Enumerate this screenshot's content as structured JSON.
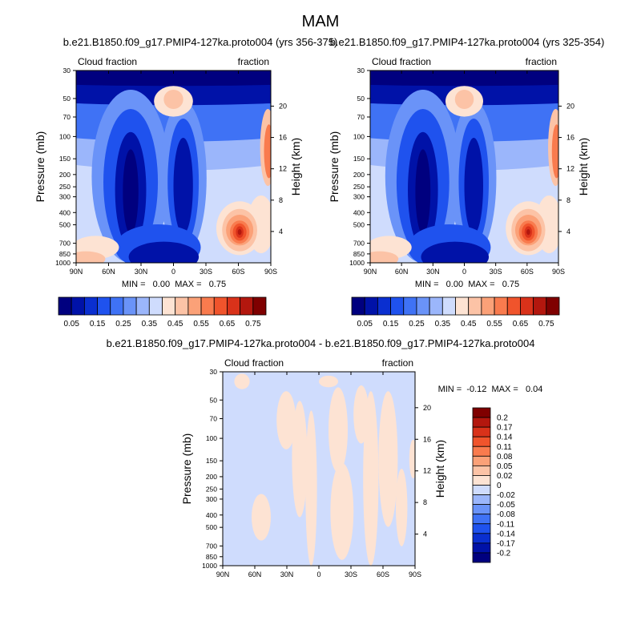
{
  "figure": {
    "title": "MAM"
  },
  "chart_data": [
    {
      "type": "heatmap",
      "title": "b.e21.B1850.f09_g17.PMIP4-127ka.proto004 (yrs 356-375)",
      "left_label": "Cloud fraction",
      "right_label": "fraction",
      "xlabel": "",
      "ylabel": "Pressure (mb)",
      "ylabel_right": "Height (km)",
      "x_ticks": [
        "90N",
        "60N",
        "30N",
        "0",
        "30S",
        "60S",
        "90S"
      ],
      "x_values": [
        90,
        60,
        30,
        0,
        -30,
        -60,
        -90
      ],
      "y_ticks": [
        "30",
        "50",
        "70",
        "100",
        "150",
        "200",
        "250",
        "300",
        "400",
        "500",
        "700",
        "850",
        "1000"
      ],
      "y_values": [
        30,
        50,
        70,
        100,
        150,
        200,
        250,
        300,
        400,
        500,
        700,
        850,
        1000
      ],
      "height_ticks": [
        "20",
        "16",
        "12",
        "8",
        "4"
      ],
      "height_values": [
        20,
        16,
        12,
        8,
        4
      ],
      "ylim": [
        1000,
        30
      ],
      "stats": "MIN =   0.00  MAX =   0.75",
      "colorbar": {
        "orientation": "horizontal",
        "colors": [
          "#00007f",
          "#0012a8",
          "#0a2fd0",
          "#1f52ee",
          "#3f72f5",
          "#6a93f8",
          "#9bb6fb",
          "#cfdcfd",
          "#fde3d3",
          "#fcc3a6",
          "#fba178",
          "#f97b4e",
          "#f0542c",
          "#d9321a",
          "#b3170e",
          "#7f0000"
        ],
        "labels": [
          "0.05",
          "0.15",
          "0.25",
          "0.35",
          "0.45",
          "0.55",
          "0.65",
          "0.75"
        ]
      }
    },
    {
      "type": "heatmap",
      "title": "b.e21.B1850.f09_g17.PMIP4-127ka.proto004 (yrs 325-354)",
      "left_label": "Cloud fraction",
      "right_label": "fraction",
      "xlabel": "",
      "ylabel": "Pressure (mb)",
      "ylabel_right": "Height (km)",
      "x_ticks": [
        "90N",
        "60N",
        "30N",
        "0",
        "30S",
        "60S",
        "90S"
      ],
      "x_values": [
        90,
        60,
        30,
        0,
        -30,
        -60,
        -90
      ],
      "y_ticks": [
        "30",
        "50",
        "70",
        "100",
        "150",
        "200",
        "250",
        "300",
        "400",
        "500",
        "700",
        "850",
        "1000"
      ],
      "y_values": [
        30,
        50,
        70,
        100,
        150,
        200,
        250,
        300,
        400,
        500,
        700,
        850,
        1000
      ],
      "height_ticks": [
        "20",
        "16",
        "12",
        "8",
        "4"
      ],
      "height_values": [
        20,
        16,
        12,
        8,
        4
      ],
      "ylim": [
        1000,
        30
      ],
      "stats": "MIN =   0.00  MAX =   0.75",
      "colorbar": {
        "orientation": "horizontal",
        "colors": [
          "#00007f",
          "#0012a8",
          "#0a2fd0",
          "#1f52ee",
          "#3f72f5",
          "#6a93f8",
          "#9bb6fb",
          "#cfdcfd",
          "#fde3d3",
          "#fcc3a6",
          "#fba178",
          "#f97b4e",
          "#f0542c",
          "#d9321a",
          "#b3170e",
          "#7f0000"
        ],
        "labels": [
          "0.05",
          "0.15",
          "0.25",
          "0.35",
          "0.45",
          "0.55",
          "0.65",
          "0.75"
        ]
      }
    },
    {
      "type": "heatmap",
      "title": "b.e21.B1850.f09_g17.PMIP4-127ka.proto004 - b.e21.B1850.f09_g17.PMIP4-127ka.proto004",
      "left_label": "Cloud fraction",
      "right_label": "fraction",
      "xlabel": "",
      "ylabel": "Pressure (mb)",
      "ylabel_right": "Height (km)",
      "x_ticks": [
        "90N",
        "60N",
        "30N",
        "0",
        "30S",
        "60S",
        "90S"
      ],
      "x_values": [
        90,
        60,
        30,
        0,
        -30,
        -60,
        -90
      ],
      "y_ticks": [
        "30",
        "50",
        "70",
        "100",
        "150",
        "200",
        "250",
        "300",
        "400",
        "500",
        "700",
        "850",
        "1000"
      ],
      "y_values": [
        30,
        50,
        70,
        100,
        150,
        200,
        250,
        300,
        400,
        500,
        700,
        850,
        1000
      ],
      "height_ticks": [
        "20",
        "16",
        "12",
        "8",
        "4"
      ],
      "height_values": [
        20,
        16,
        12,
        8,
        4
      ],
      "ylim": [
        1000,
        30
      ],
      "stats": "MIN =  -0.12  MAX =   0.04",
      "colorbar": {
        "orientation": "vertical",
        "colors": [
          "#7f0000",
          "#b3170e",
          "#d9321a",
          "#f0542c",
          "#f97b4e",
          "#fba178",
          "#fcc3a6",
          "#fde3d3",
          "#cfdcfd",
          "#9bb6fb",
          "#6a93f8",
          "#3f72f5",
          "#1f52ee",
          "#0a2fd0",
          "#0012a8",
          "#00007f"
        ],
        "labels": [
          "0.2",
          "0.17",
          "0.14",
          "0.11",
          "0.08",
          "0.05",
          "0.02",
          "0",
          "-0.02",
          "-0.05",
          "-0.08",
          "-0.11",
          "-0.14",
          "-0.17",
          "-0.2"
        ]
      }
    }
  ]
}
